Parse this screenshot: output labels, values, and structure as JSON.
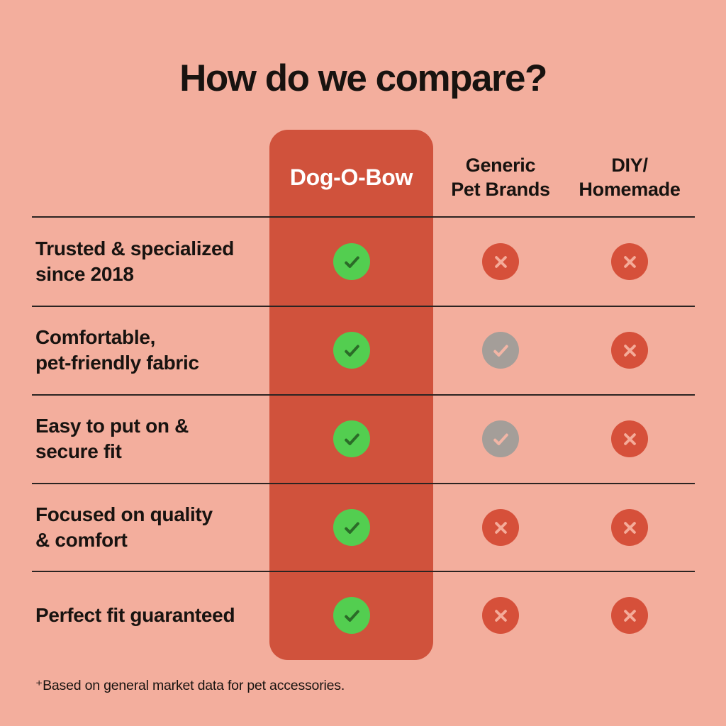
{
  "chart_data": {
    "type": "table",
    "title": "How do we compare?",
    "columns": [
      "Dog-O-Bow",
      "Generic Pet Brands",
      "DIY/Homemade"
    ],
    "rows": [
      {
        "label": "Trusted & specialized since 2018",
        "values": [
          "yes",
          "no",
          "no"
        ]
      },
      {
        "label": "Comfortable, pet-friendly fabric",
        "values": [
          "yes",
          "partial",
          "no"
        ]
      },
      {
        "label": "Easy to put on & secure fit",
        "values": [
          "yes",
          "partial",
          "no"
        ]
      },
      {
        "label": "Focused on quality & comfort",
        "values": [
          "yes",
          "no",
          "no"
        ]
      },
      {
        "label": "Perfect fit guaranteed",
        "values": [
          "yes",
          "no",
          "no"
        ]
      }
    ],
    "value_legend": {
      "yes": "green circle with check mark",
      "partial": "gray circle with check mark",
      "no": "red circle with cross mark"
    },
    "footnote": "⁺Based on general market data for pet accessories.",
    "legend_position": "none",
    "grid": "horizontal row dividers"
  },
  "display": {
    "columns": [
      "Dog-O-Bow",
      "Generic\nPet Brands",
      "DIY/\nHomemade"
    ],
    "row_labels": [
      "Trusted & specialized\nsince 2018",
      "Comfortable,\npet-friendly fabric",
      "Easy to put on &\nsecure fit",
      "Focused on quality\n& comfort",
      "Perfect fit guaranteed"
    ]
  },
  "icons": {
    "yes": "check-circle-icon",
    "partial": "check-circle-icon",
    "no": "cross-circle-icon"
  },
  "colors": {
    "bg": "#f3ae9d",
    "highlight": "#d0523c",
    "text": "#181310",
    "divider": "#2b2422",
    "headerOnHighlight": "#ffffff",
    "green": "#53ce50",
    "greenStroke": "#2b6b28",
    "red": "#d6503a",
    "redStroke": "#f4ab99",
    "gray": "#a49e99",
    "grayStroke": "#f2b5a5"
  }
}
